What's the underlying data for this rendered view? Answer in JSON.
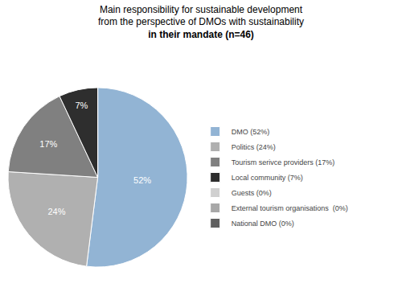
{
  "chart_data": {
    "type": "pie",
    "title": "Main responsibility for sustainable development\nfrom the perspective of DMOs with sustainability\nin their mandate (n=46)",
    "categories": [
      "DMO (52%)",
      "Politics (24%)",
      "Tourism serivce providers (17%)",
      "Local community (7%)",
      "Guests (0%)",
      "External tourism organisations  (0%)",
      "National DMO (0%)"
    ],
    "values": [
      52,
      24,
      17,
      7,
      0.001,
      0.001,
      0.001
    ],
    "value_labels": [
      "52%",
      "24%",
      "17%",
      "7%",
      null,
      null,
      null
    ],
    "colors": [
      "#92b4d4",
      "#b0b0b0",
      "#808080",
      "#2e2e2e",
      "#d0d0d0",
      "#a8a8a8",
      "#606060"
    ],
    "data_labels": true,
    "legend": "right"
  }
}
